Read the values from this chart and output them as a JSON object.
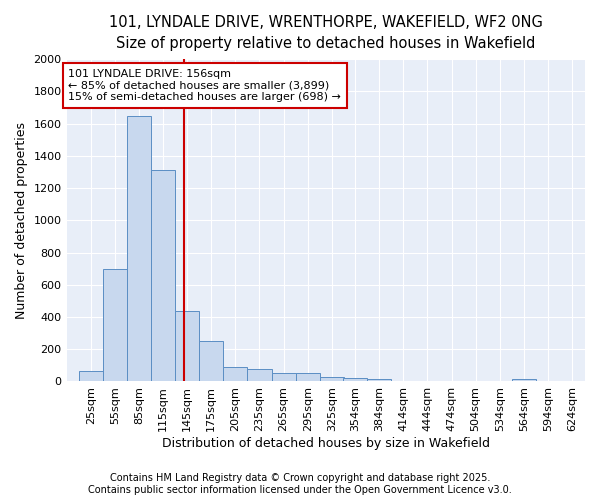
{
  "title_line1": "101, LYNDALE DRIVE, WRENTHORPE, WAKEFIELD, WF2 0NG",
  "title_line2": "Size of property relative to detached houses in Wakefield",
  "xlabel": "Distribution of detached houses by size in Wakefield",
  "ylabel": "Number of detached properties",
  "bar_color": "#c8d8ee",
  "bar_edge_color": "#5b8ec4",
  "background_color": "#e8eef8",
  "grid_color": "#ffffff",
  "categories": [
    "25sqm",
    "55sqm",
    "85sqm",
    "115sqm",
    "145sqm",
    "175sqm",
    "205sqm",
    "235sqm",
    "265sqm",
    "295sqm",
    "325sqm",
    "354sqm",
    "384sqm",
    "414sqm",
    "444sqm",
    "474sqm",
    "504sqm",
    "534sqm",
    "564sqm",
    "594sqm",
    "624sqm"
  ],
  "bin_left_edges": [
    25,
    55,
    85,
    115,
    145,
    175,
    205,
    235,
    265,
    295,
    325,
    354,
    384,
    414,
    444,
    474,
    504,
    534,
    564,
    594,
    624
  ],
  "bin_width": 30,
  "values": [
    65,
    700,
    1650,
    1310,
    440,
    250,
    90,
    80,
    50,
    50,
    25,
    20,
    15,
    0,
    0,
    0,
    0,
    0,
    15,
    0,
    0
  ],
  "property_size": 156,
  "annotation_line1": "101 LYNDALE DRIVE: 156sqm",
  "annotation_line2": "← 85% of detached houses are smaller (3,899)",
  "annotation_line3": "15% of semi-detached houses are larger (698) →",
  "red_line_color": "#cc0000",
  "annotation_box_facecolor": "#ffffff",
  "annotation_box_edgecolor": "#cc0000",
  "ylim": [
    0,
    2000
  ],
  "yticks": [
    0,
    200,
    400,
    600,
    800,
    1000,
    1200,
    1400,
    1600,
    1800,
    2000
  ],
  "footer_line1": "Contains HM Land Registry data © Crown copyright and database right 2025.",
  "footer_line2": "Contains public sector information licensed under the Open Government Licence v3.0.",
  "title_fontsize": 10.5,
  "subtitle_fontsize": 9.5,
  "axis_label_fontsize": 9,
  "tick_fontsize": 8,
  "annotation_fontsize": 8,
  "footer_fontsize": 7,
  "fig_facecolor": "#ffffff"
}
